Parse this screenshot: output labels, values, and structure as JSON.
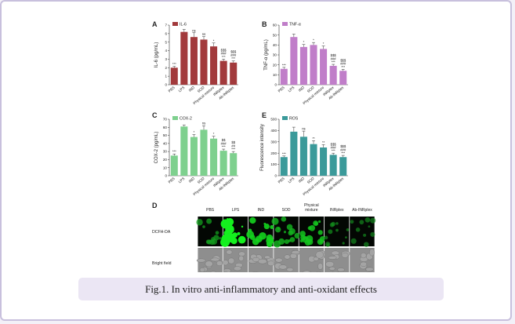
{
  "caption": "Fig.1. In vitro anti-inflammatory and anti-oxidant effects",
  "groups": [
    "PBS",
    "LPS",
    "IND",
    "SOD",
    "Physical mixture",
    "INRplex",
    "Ab-INRplex"
  ],
  "chart_data": [
    {
      "panel": "A",
      "type": "bar",
      "legend": "IL-6",
      "ylabel": "IL-6 (pg/mL)",
      "color": "#a23a3c",
      "ylim": [
        0,
        7
      ],
      "yticks": [
        0,
        1,
        2,
        3,
        4,
        5,
        6,
        7
      ],
      "categories": [
        "PBS",
        "LPS",
        "IND",
        "SOD",
        "Physical mixture",
        "INRplex",
        "Ab-INRplex"
      ],
      "values": [
        2.0,
        6.2,
        5.6,
        5.3,
        4.5,
        2.8,
        2.6
      ],
      "errors": [
        0.15,
        0.3,
        0.5,
        0.35,
        0.4,
        0.2,
        0.2
      ],
      "sig": [
        "***",
        "",
        "ns",
        "ns",
        "*",
        "$$$\n###\n***",
        "$$$\n###\n***"
      ]
    },
    {
      "panel": "B",
      "type": "bar",
      "legend": "TNF-α",
      "ylabel": "TNF-α (pg/mL)",
      "color": "#c07ec9",
      "ylim": [
        0,
        60
      ],
      "yticks": [
        0,
        10,
        20,
        30,
        40,
        50,
        60
      ],
      "categories": [
        "PBS",
        "LPS",
        "IND",
        "SOD",
        "Physical mixture",
        "INRplex",
        "Ab-INRplex"
      ],
      "values": [
        16,
        48,
        38,
        40,
        36,
        19,
        14
      ],
      "errors": [
        1.5,
        3,
        2.5,
        2.5,
        3,
        1.5,
        1.5
      ],
      "sig": [
        "***",
        "",
        "*",
        "*",
        "*",
        "$$$\n###\n***",
        "$$$\n###\n***"
      ]
    },
    {
      "panel": "C",
      "type": "bar",
      "legend": "COX-2",
      "ylabel": "COX-2 (pg/mL)",
      "color": "#7ed08e",
      "ylim": [
        0,
        70
      ],
      "yticks": [
        0,
        10,
        20,
        30,
        40,
        50,
        60,
        70
      ],
      "categories": [
        "PBS",
        "LPS",
        "IND",
        "SOD",
        "Physical mixture",
        "INRplex",
        "Ab-INRplex"
      ],
      "values": [
        25,
        61,
        48,
        57,
        46,
        31,
        28
      ],
      "errors": [
        2,
        2,
        3,
        5,
        3,
        2,
        2
      ],
      "sig": [
        "***",
        "",
        "*",
        "ns",
        "*",
        "$$\n###\n***",
        "$$\n##\n***"
      ]
    },
    {
      "panel": "E",
      "type": "bar",
      "legend": "ROS",
      "ylabel": "Fluorescence intensity",
      "color": "#3b9a9a",
      "ylim": [
        0,
        500
      ],
      "yticks": [
        0,
        100,
        200,
        300,
        400,
        500
      ],
      "categories": [
        "PBS",
        "LPS",
        "IND",
        "SOD",
        "Physical mixture",
        "INRplex",
        "Ab-INRplex"
      ],
      "values": [
        165,
        390,
        345,
        280,
        250,
        185,
        165
      ],
      "errors": [
        10,
        40,
        50,
        30,
        25,
        15,
        15
      ],
      "sig": [
        "***",
        "",
        "ns",
        "**",
        "**",
        "$$$\n###\n***",
        "$$$\n###\n***"
      ]
    }
  ],
  "panel_d": {
    "label": "D",
    "columns": [
      "PBS",
      "LPS",
      "IND",
      "SOD",
      "Physical mixture",
      "INRplex",
      "Ab-INRplex"
    ],
    "rows": [
      "DCFH-DA",
      "Bright field"
    ],
    "fluorescence_level": [
      0.45,
      1.0,
      0.8,
      0.6,
      0.7,
      0.35,
      0.3
    ]
  }
}
